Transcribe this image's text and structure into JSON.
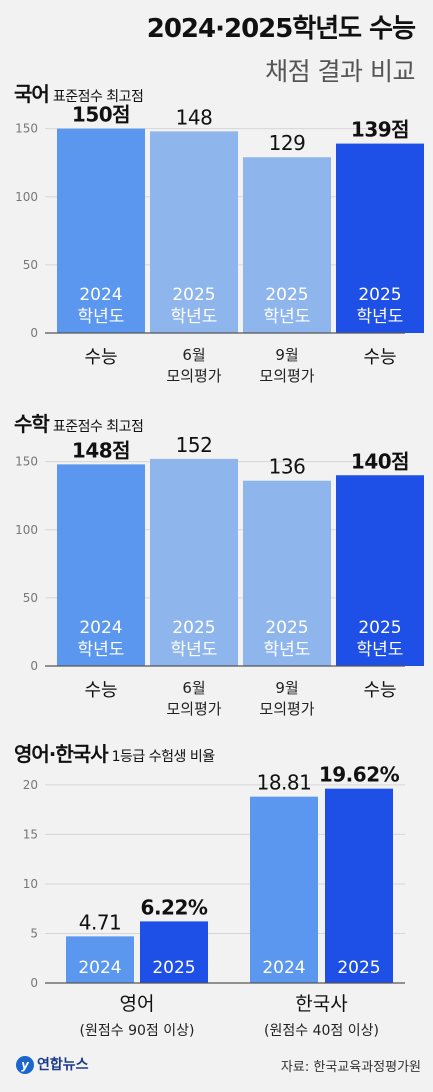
{
  "header": {
    "title": "2024·2025학년도 수능",
    "subtitle": "채점 결과 비교"
  },
  "sections": [
    {
      "title": "국어",
      "subtitle": "표준점수 최고점"
    },
    {
      "title": "수학",
      "subtitle": "표준점수 최고점"
    },
    {
      "title": "영어·한국사",
      "subtitle": "1등급 수험생 비율"
    }
  ],
  "colors": {
    "dark_blue": "#1e4fe6",
    "mid_blue": "#5b97ef",
    "light_blue": "#8fb6ec"
  },
  "footer": {
    "logo_text": "연합뉴스",
    "logo_mark": "y",
    "source": "자료: 한국교육과정평가원"
  },
  "chart_data": [
    {
      "type": "bar",
      "title": "국어",
      "subtitle": "표준점수 최고점",
      "categories": [
        "수능",
        "6월\n모의평가",
        "9월\n모의평가",
        "수능"
      ],
      "values": [
        150,
        148,
        129,
        139
      ],
      "data_labels": [
        "150점",
        "148",
        "129",
        "139점"
      ],
      "bar_labels": [
        "2024\n학년도",
        "2025\n학년도",
        "2025\n학년도",
        "2025\n학년도"
      ],
      "bar_colors": [
        "#5b97ef",
        "#8fb6ec",
        "#8fb6ec",
        "#1e4fe6"
      ],
      "yticks": [
        0,
        50,
        100,
        150
      ],
      "ylim": [
        0,
        160
      ]
    },
    {
      "type": "bar",
      "title": "수학",
      "subtitle": "표준점수 최고점",
      "categories": [
        "수능",
        "6월\n모의평가",
        "9월\n모의평가",
        "수능"
      ],
      "values": [
        148,
        152,
        136,
        140
      ],
      "data_labels": [
        "148점",
        "152",
        "136",
        "140점"
      ],
      "bar_labels": [
        "2024\n학년도",
        "2025\n학년도",
        "2025\n학년도",
        "2025\n학년도"
      ],
      "bar_colors": [
        "#5b97ef",
        "#8fb6ec",
        "#8fb6ec",
        "#1e4fe6"
      ],
      "yticks": [
        0,
        50,
        100,
        150
      ],
      "ylim": [
        0,
        160
      ]
    },
    {
      "type": "bar",
      "title": "영어·한국사",
      "subtitle": "1등급 수험생 비율",
      "groups": [
        {
          "label": "영어",
          "sublabel": "(원점수 90점 이상)",
          "values": [
            4.71,
            6.22
          ],
          "data_labels": [
            "4.71",
            "6.22%"
          ]
        },
        {
          "label": "한국사",
          "sublabel": "(원점수 40점 이상)",
          "values": [
            18.81,
            19.62
          ],
          "data_labels": [
            "18.81",
            "19.62%"
          ]
        }
      ],
      "series": [
        {
          "name": "2024",
          "color": "#5b97ef"
        },
        {
          "name": "2025",
          "color": "#1e4fe6"
        }
      ],
      "yticks": [
        0,
        5,
        10,
        15,
        20
      ],
      "ylim": [
        0,
        21.3
      ]
    }
  ]
}
